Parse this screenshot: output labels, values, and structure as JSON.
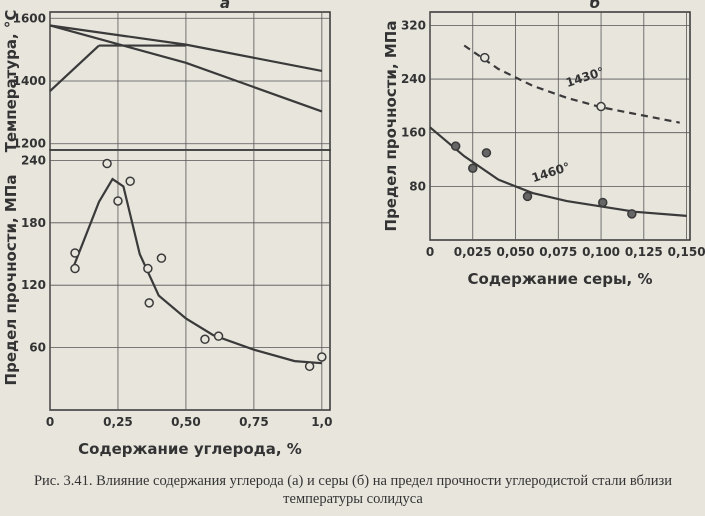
{
  "chart_data": [
    {
      "type": "line",
      "panel": "а",
      "ylabel": "Температура, °С",
      "xlim": [
        0,
        1.03
      ],
      "ylim": [
        1180,
        1620
      ],
      "yticks": [
        1200,
        1400,
        1600
      ],
      "grid": true,
      "series": [
        {
          "color": "#3a3a3a",
          "x": [
            0,
            0.5,
            1.0
          ],
          "values": [
            1577,
            1516,
            1432
          ]
        },
        {
          "color": "#3a3a3a",
          "x": [
            0,
            0.5,
            1.0
          ],
          "values": [
            1577,
            1458,
            1303
          ]
        },
        {
          "color": "#3a3a3a",
          "x": [
            0,
            0.18
          ],
          "values": [
            1368,
            1513
          ]
        },
        {
          "color": "#3a3a3a",
          "x": [
            0.18,
            0.5
          ],
          "values": [
            1513,
            1513
          ]
        }
      ]
    },
    {
      "type": "scatter",
      "xlabel": "Содержание углерода, %",
      "ylabel": "Предел прочности, МПа",
      "xlim": [
        0,
        1.03
      ],
      "ylim": [
        0,
        250
      ],
      "xticks": [
        0,
        {
          "value": 0.25,
          "label": "0,25"
        },
        {
          "value": 0.5,
          "label": "0,50"
        },
        {
          "value": 0.75,
          "label": "0,75"
        },
        {
          "value": 1.0,
          "label": "1,0"
        }
      ],
      "yticks": [
        60,
        120,
        180,
        240
      ],
      "grid": true,
      "series": [
        {
          "color": "#3a3a3a",
          "marker": "open",
          "x": [
            0.092,
            0.092,
            0.21,
            0.25,
            0.295,
            0.36,
            0.365,
            0.41,
            0.57,
            0.62,
            0.955,
            1.0
          ],
          "values": [
            151,
            136,
            237,
            201,
            220,
            136,
            103,
            146,
            68,
            71,
            42,
            51
          ],
          "curve_x": [
            0.09,
            0.18,
            0.23,
            0.27,
            0.33,
            0.4,
            0.5,
            0.6,
            0.75,
            0.9,
            1.0
          ],
          "curve_values": [
            140,
            200,
            222,
            215,
            150,
            110,
            88,
            72,
            58,
            47,
            45
          ]
        }
      ]
    },
    {
      "type": "scatter",
      "panel": "б",
      "xlabel": "Содержание серы, %",
      "ylabel": "Предел прочности, МПа",
      "xlim": [
        0,
        0.152
      ],
      "ylim": [
        0,
        340
      ],
      "xticks": [
        0,
        {
          "value": 0.025,
          "label": "0,025"
        },
        {
          "value": 0.05,
          "label": "0,050"
        },
        {
          "value": 0.075,
          "label": "0,075"
        },
        {
          "value": 0.1,
          "label": "0,100"
        },
        {
          "value": 0.125,
          "label": "0,125"
        },
        {
          "value": 0.15,
          "label": "0,150"
        }
      ],
      "yticks": [
        80,
        160,
        240,
        320
      ],
      "grid": true,
      "series": [
        {
          "name": "1430°",
          "color": "#3a3a3a",
          "marker": "open",
          "dash": true,
          "x": [
            0.032,
            0.1
          ],
          "values": [
            272,
            199
          ],
          "curve_x": [
            0.02,
            0.04,
            0.06,
            0.08,
            0.1,
            0.12,
            0.146
          ],
          "curve_values": [
            290,
            255,
            230,
            212,
            198,
            188,
            175
          ]
        },
        {
          "name": "1460°",
          "color": "#3a3a3a",
          "marker": "filled",
          "x": [
            0.015,
            0.025,
            0.033,
            0.057,
            0.101,
            0.118
          ],
          "values": [
            140,
            107,
            130,
            65,
            56,
            39
          ],
          "curve_x": [
            0,
            0.02,
            0.04,
            0.06,
            0.08,
            0.1,
            0.12,
            0.15
          ],
          "curve_values": [
            168,
            125,
            90,
            70,
            58,
            50,
            42,
            36
          ]
        }
      ]
    }
  ],
  "caption": "Рис. 3.41. Влияние содержания углерода (а) и серы (б) на предел прочности углеродистой стали вблизи температуры солидуса"
}
